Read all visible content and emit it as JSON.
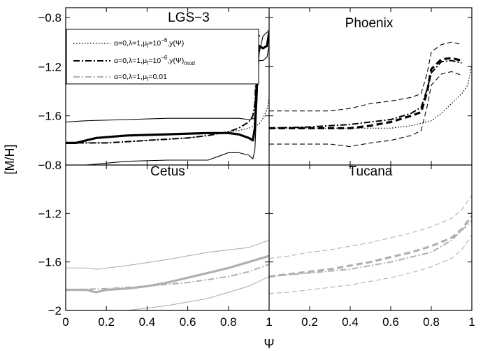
{
  "chart_data": {
    "type": "line",
    "ylabel": "[M/H]",
    "xlabel": "Ψ",
    "xlim": [
      0,
      1
    ],
    "ylim_top_row": [
      -2.0,
      -0.72
    ],
    "ylim_bottom_row": [
      -2.0,
      -0.8
    ],
    "x_ticks": [
      0,
      0.2,
      0.4,
      0.6,
      0.8,
      1
    ],
    "x_tick_labels_left": [
      "0",
      "0.2",
      "0.4",
      "0.6",
      "0.8",
      "1"
    ],
    "x_tick_labels_right": [
      "",
      "0.2",
      "0.4",
      "0.6",
      "0.8",
      "1"
    ],
    "y_ticks": [
      -2,
      -1.6,
      -1.2,
      -0.8
    ],
    "y_tick_labels_top": [
      "",
      "−1.6",
      "−1.2",
      "−0.8"
    ],
    "y_tick_labels_bottom": [
      "−2",
      "−1.6",
      "−1.2",
      "−0.8"
    ],
    "legend": {
      "location": "top-left of LGS-3 panel",
      "entries": [
        {
          "prefix": "α=0,λ=1,μ",
          "sub": "f",
          "mid": "=10",
          "sup": "−6",
          "suffix": ",y(Ψ)",
          "sub2": "",
          "style": "dotted",
          "color": "#000000"
        },
        {
          "prefix": "α=0,λ=1,μ",
          "sub": "f",
          "mid": "=10",
          "sup": "−6",
          "suffix": ",y(Ψ)",
          "sub2": "mod",
          "style": "dashdot",
          "color": "#000000"
        },
        {
          "prefix": "α=0,λ=1,μ",
          "sub": "f",
          "mid": "=0.01",
          "sup": "",
          "suffix": "",
          "sub2": "",
          "style": "dashdot",
          "color": "#b0b0b0"
        }
      ]
    },
    "panels": [
      {
        "title": "LGS−3",
        "position": "top-left",
        "series": [
          {
            "style": "solid-thick",
            "color": "#000000",
            "x": [
              0,
              0.05,
              0.15,
              0.3,
              0.5,
              0.7,
              0.8,
              0.85,
              0.9,
              0.92,
              0.93,
              0.94,
              0.95,
              0.97,
              0.99,
              1.0
            ],
            "y": [
              -1.82,
              -1.82,
              -1.78,
              -1.76,
              -1.75,
              -1.74,
              -1.74,
              -1.75,
              -1.78,
              -1.8,
              -1.7,
              -1.3,
              -1.03,
              -1.05,
              -1.03,
              -0.92
            ]
          },
          {
            "style": "solid-thin",
            "color": "#000000",
            "x": [
              0,
              0.1,
              0.3,
              0.5,
              0.7,
              0.85,
              0.9,
              0.93,
              0.94,
              0.95,
              0.97,
              0.99,
              1.0
            ],
            "y": [
              -1.65,
              -1.64,
              -1.63,
              -1.62,
              -1.62,
              -1.62,
              -1.63,
              -1.62,
              -1.5,
              -1.1,
              -0.95,
              -0.92,
              -0.9
            ]
          },
          {
            "style": "solid-thin",
            "color": "#000000",
            "x": [
              0,
              0.1,
              0.3,
              0.5,
              0.6,
              0.7,
              0.75,
              0.8,
              0.85,
              0.9,
              0.92,
              0.93,
              0.94,
              0.95,
              0.97,
              0.99,
              1.0
            ],
            "y": [
              -2.02,
              -2.0,
              -1.97,
              -1.96,
              -1.96,
              -1.96,
              -1.93,
              -1.9,
              -1.9,
              -1.92,
              -1.95,
              -1.88,
              -1.5,
              -1.15,
              -1.15,
              -1.12,
              -1.02
            ]
          },
          {
            "style": "dashdot",
            "color": "#000000",
            "x": [
              0,
              0.2,
              0.4,
              0.6,
              0.7,
              0.8,
              0.85,
              0.9,
              0.92,
              0.93,
              0.935,
              0.94,
              0.95,
              0.955
            ],
            "y": [
              -1.82,
              -1.82,
              -1.8,
              -1.78,
              -1.76,
              -1.73,
              -1.7,
              -1.65,
              -1.6,
              -1.5,
              -1.3,
              -1.0,
              -0.95,
              -0.95
            ]
          },
          {
            "style": "dotted",
            "color": "#000000",
            "x": [
              0,
              0.2,
              0.4,
              0.6,
              0.7,
              0.8,
              0.85,
              0.9,
              0.95,
              0.97,
              0.99,
              1.0
            ],
            "y": [
              -1.82,
              -1.82,
              -1.8,
              -1.78,
              -1.76,
              -1.73,
              -1.72,
              -1.7,
              -1.67,
              -1.62,
              -1.55,
              -1.45
            ]
          }
        ]
      },
      {
        "title": "Phoenix",
        "position": "top-right",
        "series": [
          {
            "style": "dashed-thick",
            "color": "#000000",
            "x": [
              0,
              0.1,
              0.2,
              0.3,
              0.4,
              0.5,
              0.6,
              0.7,
              0.75,
              0.78,
              0.8,
              0.85,
              0.9,
              0.95
            ],
            "y": [
              -1.7,
              -1.7,
              -1.7,
              -1.7,
              -1.7,
              -1.68,
              -1.65,
              -1.6,
              -1.57,
              -1.4,
              -1.22,
              -1.14,
              -1.13,
              -1.15
            ]
          },
          {
            "style": "dashed-thin",
            "color": "#000000",
            "x": [
              0,
              0.1,
              0.2,
              0.3,
              0.4,
              0.5,
              0.6,
              0.7,
              0.75,
              0.78,
              0.8,
              0.85,
              0.9,
              0.95
            ],
            "y": [
              -1.56,
              -1.56,
              -1.56,
              -1.56,
              -1.54,
              -1.5,
              -1.48,
              -1.45,
              -1.42,
              -1.25,
              -1.08,
              -1.02,
              -1.0,
              -1.02
            ]
          },
          {
            "style": "dashed-thin",
            "color": "#000000",
            "x": [
              0,
              0.1,
              0.2,
              0.3,
              0.4,
              0.5,
              0.6,
              0.7,
              0.75,
              0.78,
              0.8,
              0.85,
              0.9,
              0.95
            ],
            "y": [
              -1.83,
              -1.83,
              -1.83,
              -1.83,
              -1.85,
              -1.82,
              -1.8,
              -1.76,
              -1.72,
              -1.52,
              -1.35,
              -1.26,
              -1.24,
              -1.27
            ]
          },
          {
            "style": "dashdot",
            "color": "#000000",
            "x": [
              0,
              0.2,
              0.4,
              0.6,
              0.7,
              0.75,
              0.78,
              0.8,
              0.85,
              0.9,
              0.95
            ],
            "y": [
              -1.7,
              -1.69,
              -1.67,
              -1.63,
              -1.58,
              -1.53,
              -1.38,
              -1.25,
              -1.16,
              -1.15,
              -1.17
            ]
          },
          {
            "style": "dotted",
            "color": "#000000",
            "x": [
              0,
              0.2,
              0.4,
              0.6,
              0.7,
              0.8,
              0.85,
              0.9,
              0.95,
              0.98,
              1.0
            ],
            "y": [
              -1.7,
              -1.7,
              -1.7,
              -1.7,
              -1.68,
              -1.64,
              -1.58,
              -1.5,
              -1.42,
              -1.35,
              -1.18
            ]
          }
        ]
      },
      {
        "title": "Cetus",
        "position": "bottom-left",
        "series": [
          {
            "style": "solid-thick",
            "color": "#b0b0b0",
            "x": [
              0,
              0.1,
              0.15,
              0.2,
              0.3,
              0.4,
              0.5,
              0.6,
              0.7,
              0.8,
              0.9,
              1.0
            ],
            "y": [
              -1.83,
              -1.83,
              -1.85,
              -1.83,
              -1.82,
              -1.8,
              -1.77,
              -1.73,
              -1.69,
              -1.65,
              -1.6,
              -1.55
            ]
          },
          {
            "style": "solid-thin",
            "color": "#b0b0b0",
            "x": [
              0,
              0.1,
              0.15,
              0.3,
              0.5,
              0.7,
              0.9,
              1.0
            ],
            "y": [
              -1.65,
              -1.65,
              -1.66,
              -1.63,
              -1.58,
              -1.52,
              -1.48,
              -1.42
            ]
          },
          {
            "style": "solid-thin",
            "color": "#b0b0b0",
            "x": [
              0,
              0.1,
              0.15,
              0.3,
              0.5,
              0.7,
              0.9,
              1.0
            ],
            "y": [
              -2.02,
              -2.02,
              -2.03,
              -2.0,
              -1.96,
              -1.9,
              -1.8,
              -1.72
            ]
          },
          {
            "style": "dashdot",
            "color": "#b0b0b0",
            "x": [
              0,
              0.2,
              0.4,
              0.6,
              0.8,
              0.9,
              1.0
            ],
            "y": [
              -1.83,
              -1.82,
              -1.8,
              -1.77,
              -1.72,
              -1.68,
              -1.62
            ]
          }
        ]
      },
      {
        "title": "Tucana",
        "position": "bottom-right",
        "series": [
          {
            "style": "dashed-thick",
            "color": "#b0b0b0",
            "x": [
              0,
              0.1,
              0.2,
              0.3,
              0.4,
              0.5,
              0.6,
              0.7,
              0.8,
              0.9,
              0.95,
              1.0
            ],
            "y": [
              -1.72,
              -1.7,
              -1.68,
              -1.66,
              -1.63,
              -1.6,
              -1.56,
              -1.52,
              -1.47,
              -1.4,
              -1.33,
              -1.22
            ]
          },
          {
            "style": "dashed-thin",
            "color": "#b0b0b0",
            "x": [
              0,
              0.1,
              0.2,
              0.3,
              0.4,
              0.5,
              0.6,
              0.7,
              0.8,
              0.9,
              0.95,
              1.0
            ],
            "y": [
              -1.57,
              -1.55,
              -1.52,
              -1.5,
              -1.47,
              -1.44,
              -1.4,
              -1.36,
              -1.31,
              -1.24,
              -1.17,
              -1.05
            ]
          },
          {
            "style": "dashed-thin",
            "color": "#b0b0b0",
            "x": [
              0,
              0.1,
              0.2,
              0.3,
              0.4,
              0.5,
              0.6,
              0.7,
              0.8,
              0.9,
              0.95,
              1.0
            ],
            "y": [
              -1.86,
              -1.85,
              -1.83,
              -1.81,
              -1.79,
              -1.76,
              -1.73,
              -1.69,
              -1.64,
              -1.57,
              -1.5,
              -1.38
            ]
          },
          {
            "style": "dashdot",
            "color": "#b0b0b0",
            "x": [
              0,
              0.2,
              0.4,
              0.6,
              0.8,
              0.9,
              1.0
            ],
            "y": [
              -1.72,
              -1.69,
              -1.66,
              -1.6,
              -1.52,
              -1.42,
              -1.26
            ]
          }
        ]
      }
    ]
  }
}
